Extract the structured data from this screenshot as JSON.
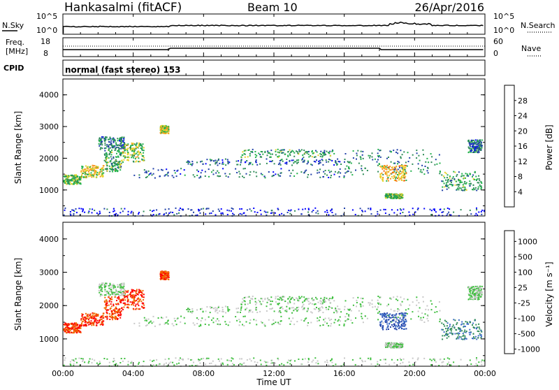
{
  "header": {
    "station": "Hankasalmi (fitACF)",
    "beam": "Beam 10",
    "date": "26/Apr/2016"
  },
  "noise_panel": {
    "left_label": "N.Sky",
    "right_label": "N.Search",
    "left_ticks": [
      "10^5",
      "10^0"
    ],
    "right_ticks": [
      "10^5",
      "10^0"
    ]
  },
  "freq_panel": {
    "left_label_top": "Freq.",
    "left_label_bottom": "[MHz]",
    "left_ticks": [
      "18",
      "8"
    ],
    "right_label": "Nave",
    "right_ticks": [
      "60",
      "0"
    ]
  },
  "cpid_panel": {
    "label": "CPID",
    "text": "normal (fast stereo) 153"
  },
  "power_panel": {
    "ylabel": "Slant Range [km]",
    "yticks": [
      "4000",
      "3000",
      "2000",
      "1000"
    ],
    "colorbar_label": "Power [dB]",
    "colorbar_ticks": [
      "28",
      "24",
      "20",
      "16",
      "12",
      "8",
      "4"
    ],
    "colors": [
      "#0000ff",
      "#1f3fa8",
      "#2e8b57",
      "#22b14c",
      "#e8d22b",
      "#f79521",
      "#f05a0a",
      "#ff0000"
    ]
  },
  "velocity_panel": {
    "ylabel": "Slant Range [km]",
    "yticks": [
      "4000",
      "3000",
      "2000",
      "1000"
    ],
    "colorbar_label": "Velocity [m s⁻¹]",
    "colorbar_ticks": [
      "1000",
      "500",
      "100",
      "25",
      "-25",
      "-100",
      "-500",
      "-1000"
    ],
    "colors": [
      "#1f3fa8",
      "#3b6bc4",
      "#2e8b57",
      "#3fbf3f",
      "#c8c8c8",
      "#f0a020",
      "#f06a00",
      "#ff0000"
    ]
  },
  "xaxis": {
    "ticks": [
      "00:00",
      "04:00",
      "08:00",
      "12:00",
      "16:00",
      "20:00",
      "00:00"
    ],
    "label": "Time UT"
  },
  "chart_data": {
    "type": "heatmap",
    "x_range_hours": [
      0,
      24
    ],
    "y_range_km": [
      180,
      4500
    ],
    "power_range_db": [
      0,
      30
    ],
    "velocity_range_ms": [
      -1000,
      1000
    ],
    "grid": false,
    "echo_bands": [
      {
        "t0": 0.0,
        "t1": 1.0,
        "r0": 1200,
        "r1": 1500,
        "power_db": 14,
        "velocity_ms": -500
      },
      {
        "t0": 1.0,
        "t1": 2.3,
        "r0": 1400,
        "r1": 1800,
        "power_db": 18,
        "velocity_ms": -500
      },
      {
        "t0": 2.3,
        "t1": 3.3,
        "r0": 1600,
        "r1": 2300,
        "power_db": 12,
        "velocity_ms": -500
      },
      {
        "t0": 3.3,
        "t1": 4.6,
        "r0": 1900,
        "r1": 2500,
        "power_db": 16,
        "velocity_ms": -500
      },
      {
        "t0": 2.0,
        "t1": 3.5,
        "r0": 2300,
        "r1": 2700,
        "power_db": 8,
        "velocity_ms": 0
      },
      {
        "t0": 5.5,
        "t1": 6.0,
        "r0": 2800,
        "r1": 3050,
        "power_db": 18,
        "velocity_ms": -500
      },
      {
        "t0": 4.0,
        "t1": 16.0,
        "r0": 1400,
        "r1": 1700,
        "power_db": 8,
        "velocity_ms": 0
      },
      {
        "t0": 7.0,
        "t1": 16.0,
        "r0": 1800,
        "r1": 2000,
        "power_db": 8,
        "velocity_ms": 0
      },
      {
        "t0": 10.0,
        "t1": 15.5,
        "r0": 2050,
        "r1": 2300,
        "power_db": 12,
        "velocity_ms": 0
      },
      {
        "t0": 16.0,
        "t1": 21.5,
        "r0": 1500,
        "r1": 2300,
        "power_db": 10,
        "velocity_ms": 0
      },
      {
        "t0": 18.0,
        "t1": 19.5,
        "r0": 1300,
        "r1": 1800,
        "power_db": 20,
        "velocity_ms": 500
      },
      {
        "t0": 18.3,
        "t1": 19.3,
        "r0": 750,
        "r1": 900,
        "power_db": 14,
        "velocity_ms": 0
      },
      {
        "t0": 21.5,
        "t1": 23.8,
        "r0": 1000,
        "r1": 1600,
        "power_db": 12,
        "velocity_ms": 100
      },
      {
        "t0": 23.0,
        "t1": 23.8,
        "r0": 2200,
        "r1": 2600,
        "power_db": 8,
        "velocity_ms": 0
      },
      {
        "t0": 0.0,
        "t1": 24.0,
        "r0": 200,
        "r1": 450,
        "power_db": 8,
        "velocity_ms": 0
      }
    ],
    "noise_sky_level": "low, rising near 06:00 and 18:30-21:00",
    "transmit_freq_mhz": [
      10,
      11
    ],
    "nave": 40
  }
}
